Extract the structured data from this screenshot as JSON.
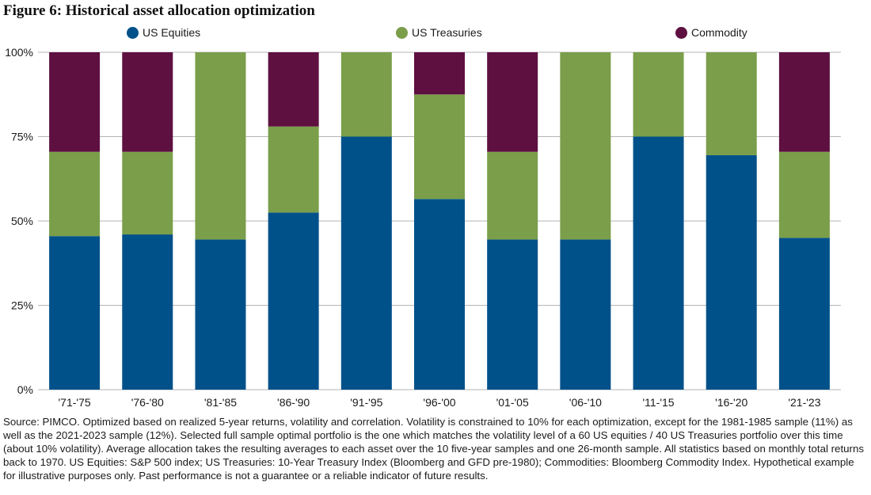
{
  "title": "Figure 6: Historical asset allocation optimization",
  "colors": {
    "equities": "#00518a",
    "treasuries": "#7a9e4a",
    "commodity": "#5e1040",
    "grid": "#b5b5b5"
  },
  "legend": [
    {
      "label": "US Equities",
      "color": "#00518a"
    },
    {
      "label": "US Treasuries",
      "color": "#7a9e4a"
    },
    {
      "label": "Commodity",
      "color": "#5e1040"
    }
  ],
  "chart_data": {
    "type": "bar",
    "stacked": true,
    "categories": [
      "'71-'75",
      "'76-'80",
      "'81-'85",
      "'86-'90",
      "'91-'95",
      "'96-'00",
      "'01-'05",
      "'06-'10",
      "'11-'15",
      "'16-'20",
      "'21-'23"
    ],
    "series": [
      {
        "name": "US Equities",
        "values": [
          45.5,
          46,
          44.5,
          52.5,
          75,
          56.5,
          44.5,
          44.5,
          75,
          69.5,
          45
        ]
      },
      {
        "name": "US Treasuries",
        "values": [
          25,
          24.5,
          55.5,
          25.5,
          25,
          31,
          26,
          55.5,
          25,
          30.5,
          25.5
        ]
      },
      {
        "name": "Commodity",
        "values": [
          29.5,
          29.5,
          0,
          22,
          0,
          12.5,
          29.5,
          0,
          0,
          0,
          29.5
        ]
      }
    ],
    "yticks": [
      "0%",
      "25%",
      "50%",
      "75%",
      "100%"
    ],
    "ylim": [
      0,
      100
    ],
    "grid": true
  },
  "footnote": "Source: PIMCO. Optimized based on realized 5-year returns, volatility and correlation. Volatility is constrained to 10% for each optimization, except for the 1981-1985 sample (11%) as well as the 2021-2023 sample (12%). Selected full sample optimal portfolio is the one which matches the volatility level of a 60 US equities / 40 US Treasuries portfolio over this time (about 10% volatility). Average allocation takes the resulting averages to each asset over the 10 five-year samples and one 26-month sample. All statistics based on monthly total returns back to 1970. US Equities: S&P 500 index; US Treasuries: 10-Year Treasury Index (Bloomberg and GFD pre-1980); Commodities: Bloomberg Commodity Index.  Hypothetical example for illustrative purposes only. Past performance is not a guarantee or a reliable indicator of future results."
}
